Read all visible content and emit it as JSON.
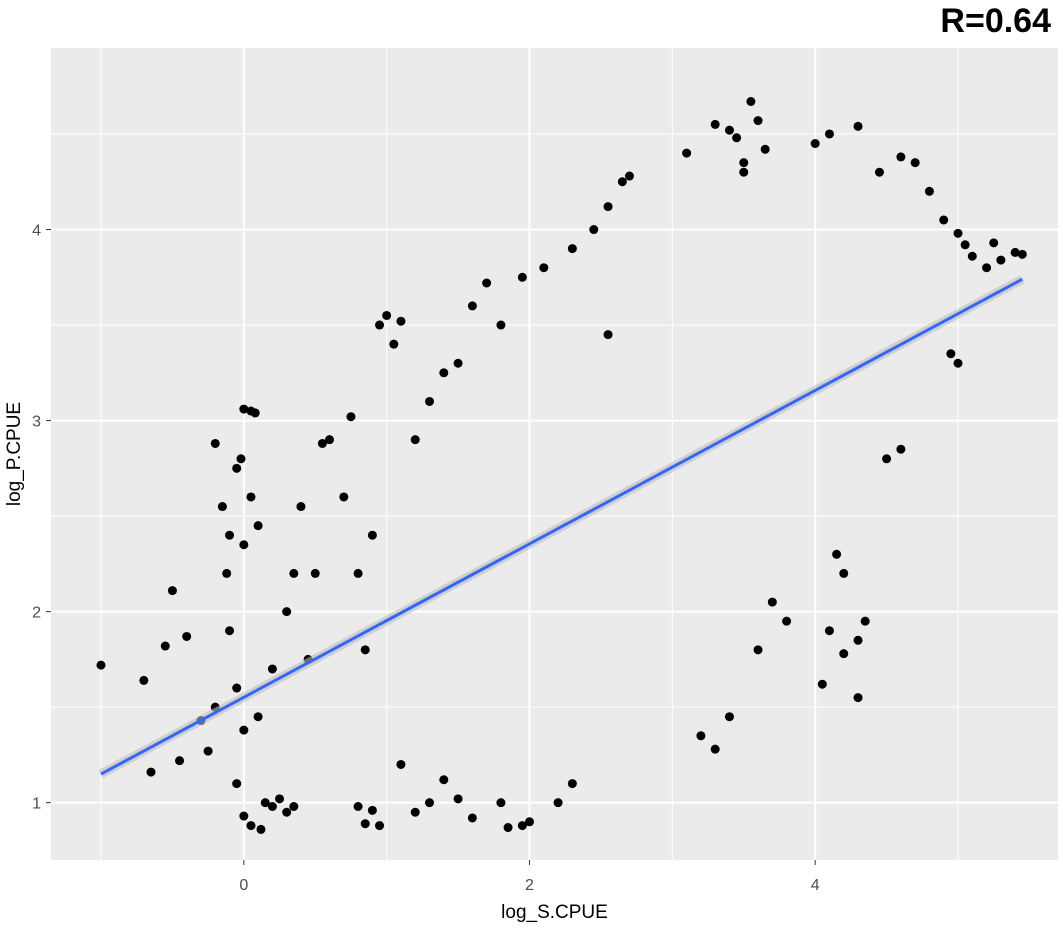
{
  "annotation": "R=0.64",
  "chart_data": {
    "type": "scatter",
    "title": "",
    "xlabel": "log_S.CPUE",
    "ylabel": "log_P.CPUE",
    "xlim": [
      -1.35,
      5.7
    ],
    "ylim": [
      0.7,
      4.95
    ],
    "x_ticks": [
      0,
      2,
      4
    ],
    "y_ticks": [
      1,
      2,
      3,
      4
    ],
    "x_tick_labels": [
      "0",
      "2",
      "4"
    ],
    "y_tick_labels": [
      "1",
      "2",
      "3",
      "4"
    ],
    "grid": true,
    "background": "#ebebeb",
    "point_color": "#000000",
    "line_color": "#3366ff",
    "fit_line": {
      "x": [
        -1.0,
        5.45
      ],
      "y": [
        1.15,
        3.74
      ]
    },
    "series": [
      {
        "points": [
          [
            -1.0,
            1.72
          ],
          [
            -0.7,
            1.64
          ],
          [
            -0.65,
            1.16
          ],
          [
            -0.55,
            1.82
          ],
          [
            -0.5,
            2.11
          ],
          [
            -0.45,
            1.22
          ],
          [
            -0.4,
            1.87
          ],
          [
            -0.3,
            1.43
          ],
          [
            -0.25,
            1.27
          ],
          [
            -0.2,
            2.88
          ],
          [
            -0.2,
            1.5
          ],
          [
            -0.15,
            2.55
          ],
          [
            -0.12,
            2.2
          ],
          [
            -0.1,
            1.9
          ],
          [
            -0.05,
            1.1
          ],
          [
            -0.05,
            2.75
          ],
          [
            -0.02,
            2.8
          ],
          [
            0.0,
            3.06
          ],
          [
            0.05,
            3.05
          ],
          [
            0.08,
            3.04
          ],
          [
            0.05,
            2.6
          ],
          [
            0.1,
            2.45
          ],
          [
            0.0,
            2.35
          ],
          [
            -0.1,
            2.4
          ],
          [
            0.0,
            0.93
          ],
          [
            0.05,
            0.88
          ],
          [
            0.12,
            0.86
          ],
          [
            0.2,
            0.98
          ],
          [
            0.25,
            1.02
          ],
          [
            0.3,
            0.95
          ],
          [
            0.35,
            0.98
          ],
          [
            0.15,
            1.0
          ],
          [
            0.8,
            0.98
          ],
          [
            0.85,
            0.89
          ],
          [
            0.9,
            0.96
          ],
          [
            0.95,
            0.88
          ],
          [
            0.0,
            1.38
          ],
          [
            0.1,
            1.45
          ],
          [
            -0.05,
            1.6
          ],
          [
            0.2,
            1.7
          ],
          [
            0.3,
            2.0
          ],
          [
            0.35,
            2.2
          ],
          [
            0.4,
            2.55
          ],
          [
            0.45,
            1.75
          ],
          [
            0.5,
            2.2
          ],
          [
            0.55,
            2.88
          ],
          [
            0.6,
            2.9
          ],
          [
            0.7,
            2.6
          ],
          [
            0.75,
            3.02
          ],
          [
            0.8,
            2.2
          ],
          [
            0.85,
            1.8
          ],
          [
            0.9,
            2.4
          ],
          [
            0.95,
            3.5
          ],
          [
            1.0,
            3.55
          ],
          [
            1.05,
            3.4
          ],
          [
            1.1,
            3.52
          ],
          [
            1.2,
            2.9
          ],
          [
            1.3,
            3.1
          ],
          [
            1.4,
            3.25
          ],
          [
            1.5,
            3.3
          ],
          [
            1.6,
            3.6
          ],
          [
            1.7,
            3.72
          ],
          [
            1.8,
            3.5
          ],
          [
            1.95,
            3.75
          ],
          [
            2.1,
            3.8
          ],
          [
            2.3,
            3.9
          ],
          [
            2.45,
            4.0
          ],
          [
            2.55,
            4.12
          ],
          [
            2.65,
            4.25
          ],
          [
            2.7,
            4.28
          ],
          [
            2.55,
            3.45
          ],
          [
            3.1,
            4.4
          ],
          [
            3.3,
            4.55
          ],
          [
            3.4,
            4.52
          ],
          [
            3.45,
            4.48
          ],
          [
            3.5,
            4.35
          ],
          [
            3.55,
            4.67
          ],
          [
            3.6,
            4.57
          ],
          [
            3.65,
            4.42
          ],
          [
            3.5,
            4.3
          ],
          [
            4.0,
            4.45
          ],
          [
            4.1,
            4.5
          ],
          [
            4.3,
            4.54
          ],
          [
            4.45,
            4.3
          ],
          [
            4.6,
            4.38
          ],
          [
            4.7,
            4.35
          ],
          [
            4.8,
            4.2
          ],
          [
            4.9,
            4.05
          ],
          [
            5.0,
            3.98
          ],
          [
            5.05,
            3.92
          ],
          [
            5.1,
            3.86
          ],
          [
            5.2,
            3.8
          ],
          [
            5.25,
            3.93
          ],
          [
            5.3,
            3.84
          ],
          [
            5.4,
            3.88
          ],
          [
            5.45,
            3.87
          ],
          [
            4.95,
            3.35
          ],
          [
            5.0,
            3.3
          ],
          [
            4.6,
            2.85
          ],
          [
            4.5,
            2.8
          ],
          [
            4.3,
            1.55
          ],
          [
            4.35,
            1.95
          ],
          [
            4.3,
            1.85
          ],
          [
            4.2,
            1.78
          ],
          [
            4.1,
            1.9
          ],
          [
            4.05,
            1.62
          ],
          [
            4.15,
            2.3
          ],
          [
            4.2,
            2.2
          ],
          [
            3.8,
            1.95
          ],
          [
            3.7,
            2.05
          ],
          [
            3.6,
            1.8
          ],
          [
            3.4,
            1.45
          ],
          [
            3.3,
            1.28
          ],
          [
            3.2,
            1.35
          ],
          [
            2.0,
            0.9
          ],
          [
            1.95,
            0.88
          ],
          [
            1.85,
            0.87
          ],
          [
            1.8,
            1.0
          ],
          [
            1.6,
            0.92
          ],
          [
            1.5,
            1.02
          ],
          [
            1.4,
            1.12
          ],
          [
            1.3,
            1.0
          ],
          [
            1.2,
            0.95
          ],
          [
            1.1,
            1.2
          ],
          [
            2.2,
            1.0
          ],
          [
            2.3,
            1.1
          ]
        ]
      }
    ]
  }
}
